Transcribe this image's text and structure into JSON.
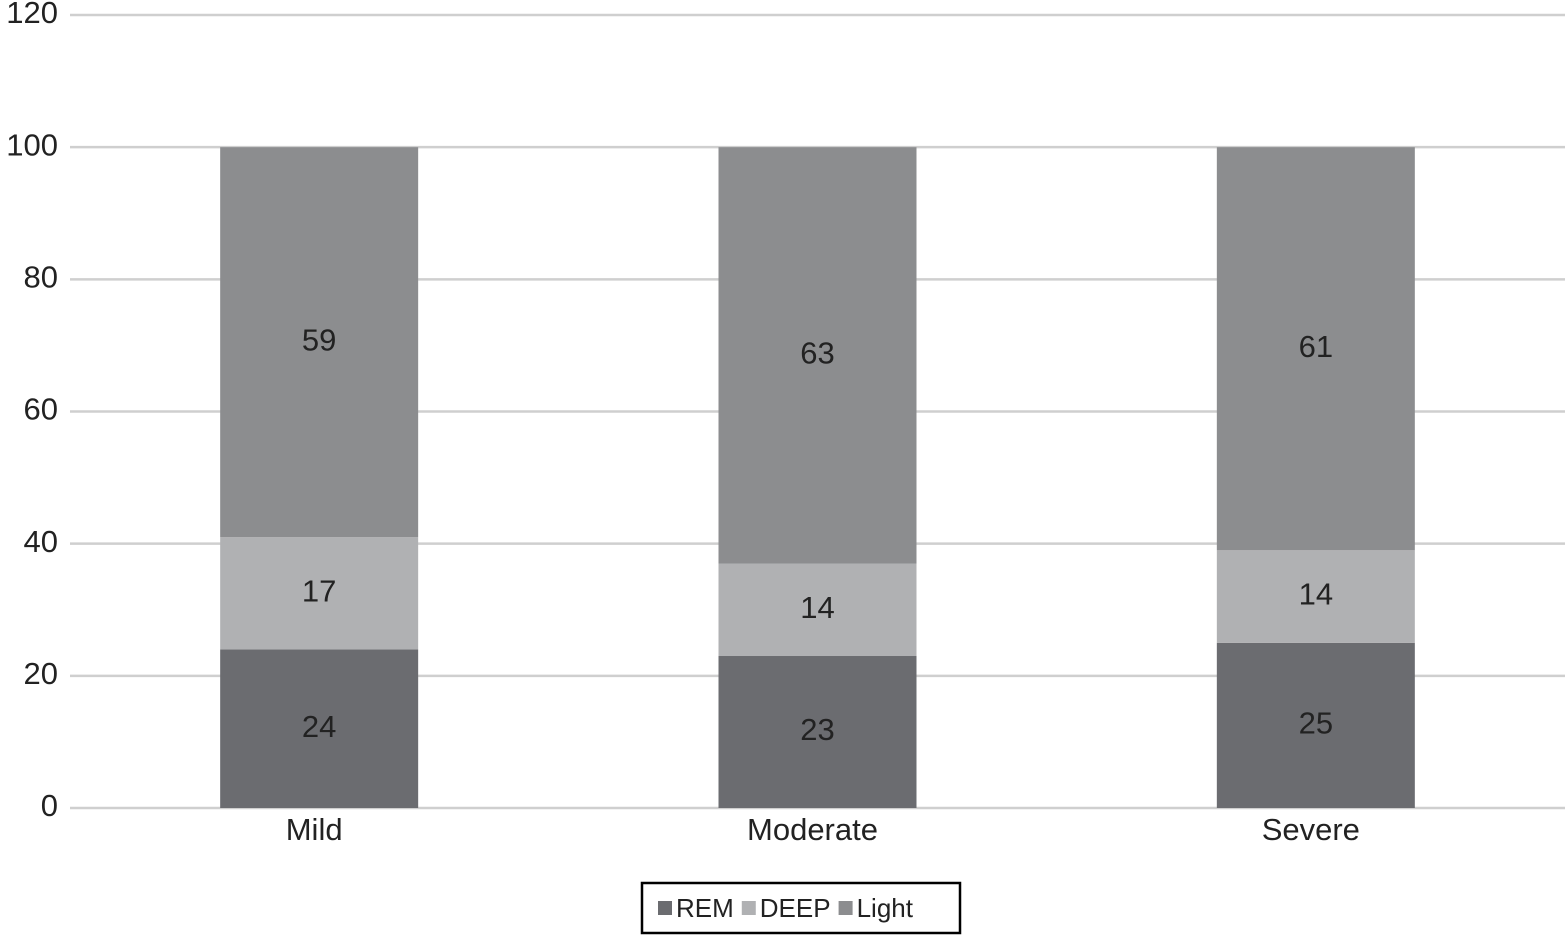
{
  "chart_data": {
    "type": "stacked_bar",
    "categories": [
      "Mild",
      "Moderate",
      "Severe"
    ],
    "series": [
      {
        "name": "REM",
        "color": "#6b6c70",
        "values": [
          24,
          23,
          25
        ]
      },
      {
        "name": "DEEP",
        "color": "#b0b1b3",
        "values": [
          17,
          14,
          14
        ]
      },
      {
        "name": "Light",
        "color": "#8c8d8f",
        "values": [
          59,
          63,
          61
        ]
      }
    ],
    "ylim": [
      0,
      120
    ],
    "yticks": [
      0,
      20,
      40,
      60,
      80,
      100,
      120
    ],
    "grid": true,
    "legend": "bottom"
  }
}
